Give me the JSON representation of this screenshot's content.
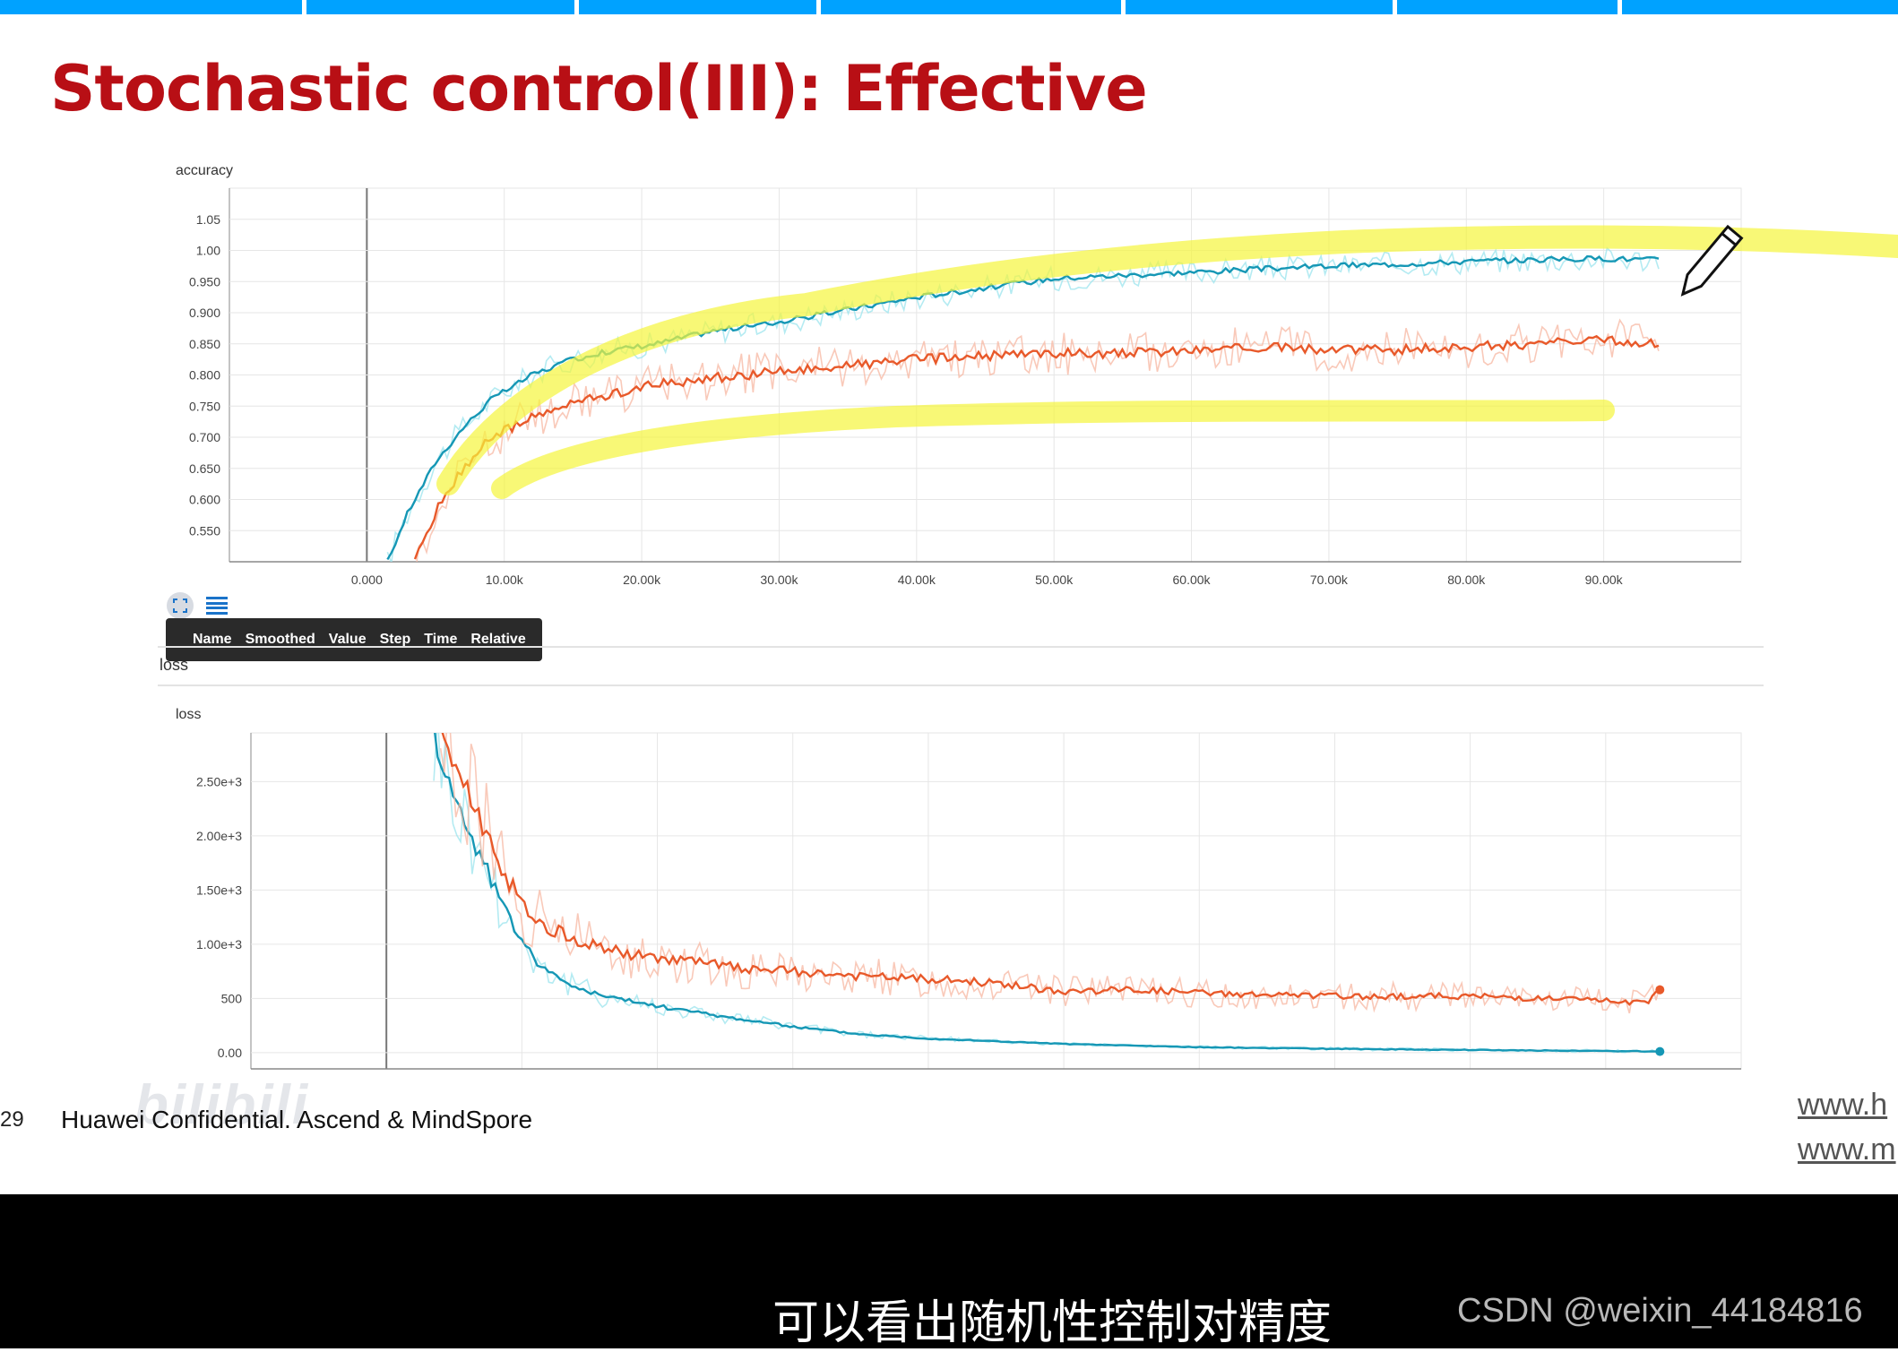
{
  "slide": {
    "title": "Stochastic control(III): Effective",
    "footer_page": "29",
    "footer_text": "Huawei Confidential. Ascend & MindSpore",
    "footer_link_1": "www.h",
    "footer_link_2": "www.m",
    "watermark": "bilibili"
  },
  "tooltip": {
    "columns": [
      "Name",
      "Smoothed",
      "Value",
      "Step",
      "Time",
      "Relative"
    ]
  },
  "section": {
    "loss_label": "loss"
  },
  "video": {
    "subtitle": "可以看出随机性控制对精度",
    "credit": "CSDN @weixin_44184816"
  },
  "colors": {
    "title": "#b80f15",
    "top_bar": "#00a2ff",
    "series_blue": "#1597b5",
    "series_orange": "#e8592a",
    "highlight": "#f5f53c"
  },
  "chart_data": [
    {
      "type": "line",
      "ylabel": "accuracy",
      "x_ticks": [
        "0.000",
        "10.00k",
        "20.00k",
        "30.00k",
        "40.00k",
        "50.00k",
        "60.00k",
        "70.00k",
        "80.00k",
        "90.00k"
      ],
      "y_ticks": [
        "1.05",
        "1.00",
        "0.950",
        "0.900",
        "0.850",
        "0.800",
        "0.750",
        "0.700",
        "0.650",
        "0.600",
        "0.550"
      ],
      "xlim": [
        -10000,
        100000
      ],
      "ylim": [
        0.5,
        1.1
      ],
      "grid": true,
      "series": [
        {
          "color": "#1597b5",
          "x": [
            1500,
            3000,
            5000,
            7000,
            9000,
            12000,
            15000,
            18000,
            21000,
            25000,
            30000,
            35000,
            40000,
            45000,
            50000,
            55000,
            60000,
            65000,
            70000,
            75000,
            80000,
            85000,
            90000,
            94000
          ],
          "y": [
            0.5,
            0.58,
            0.66,
            0.715,
            0.76,
            0.8,
            0.825,
            0.84,
            0.85,
            0.87,
            0.885,
            0.905,
            0.925,
            0.94,
            0.955,
            0.96,
            0.965,
            0.97,
            0.975,
            0.978,
            0.982,
            0.985,
            0.987,
            0.985
          ]
        },
        {
          "color": "#e8592a",
          "x": [
            3500,
            5000,
            7000,
            9000,
            12000,
            15000,
            18000,
            21000,
            25000,
            30000,
            35000,
            40000,
            45000,
            50000,
            55000,
            60000,
            65000,
            70000,
            75000,
            80000,
            85000,
            90000,
            94000
          ],
          "y": [
            0.5,
            0.58,
            0.65,
            0.7,
            0.73,
            0.755,
            0.77,
            0.785,
            0.795,
            0.805,
            0.815,
            0.825,
            0.83,
            0.835,
            0.835,
            0.84,
            0.845,
            0.84,
            0.84,
            0.845,
            0.85,
            0.855,
            0.85
          ]
        }
      ]
    },
    {
      "type": "line",
      "ylabel": "loss",
      "y_ticks": [
        "2.50e+3",
        "2.00e+3",
        "1.50e+3",
        "1.00e+3",
        "500",
        "0.00"
      ],
      "xlim": [
        -10000,
        100000
      ],
      "ylim": [
        -150,
        2950
      ],
      "grid": true,
      "series": [
        {
          "color": "#1597b5",
          "x": [
            3500,
            5000,
            7000,
            9000,
            11000,
            13000,
            16000,
            20000,
            25000,
            30000,
            35000,
            40000,
            50000,
            60000,
            70000,
            80000,
            90000,
            94000
          ],
          "y": [
            2950,
            2350,
            1800,
            1250,
            850,
            650,
            520,
            430,
            330,
            240,
            170,
            130,
            80,
            50,
            35,
            25,
            15,
            10
          ]
        },
        {
          "color": "#e8592a",
          "x": [
            4000,
            6000,
            8000,
            10000,
            12000,
            15000,
            18000,
            22000,
            26000,
            30000,
            35000,
            40000,
            45000,
            50000,
            55000,
            60000,
            65000,
            70000,
            75000,
            80000,
            85000,
            90000,
            93000,
            94000
          ],
          "y": [
            2950,
            2400,
            1850,
            1350,
            1150,
            1000,
            900,
            850,
            780,
            750,
            700,
            680,
            640,
            560,
            580,
            550,
            530,
            520,
            520,
            520,
            500,
            480,
            460,
            580
          ]
        }
      ]
    }
  ]
}
